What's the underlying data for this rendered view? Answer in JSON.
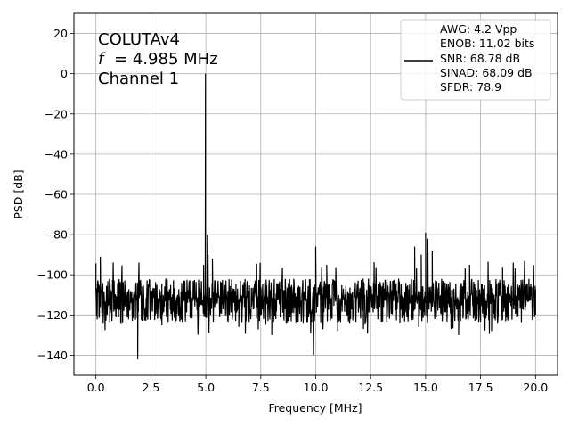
{
  "chart_data": {
    "type": "line",
    "title": "",
    "xlabel": "Frequency [MHz]",
    "ylabel": "PSD [dB]",
    "xlim": [
      -1,
      21
    ],
    "ylim": [
      -150,
      30
    ],
    "xticks": [
      0.0,
      2.5,
      5.0,
      7.5,
      10.0,
      12.5,
      15.0,
      17.5,
      20.0
    ],
    "xtick_labels": [
      "0.0",
      "2.5",
      "5.0",
      "7.5",
      "10.0",
      "12.5",
      "15.0",
      "17.5",
      "20.0"
    ],
    "yticks": [
      -140,
      -120,
      -100,
      -80,
      -60,
      -40,
      -20,
      0,
      20
    ],
    "ytick_labels": [
      "−140",
      "−120",
      "−100",
      "−80",
      "−60",
      "−40",
      "−20",
      "0",
      "20"
    ],
    "grid": true,
    "line_color": "#000000",
    "annotation_lines": [
      "COLUTAv4",
      "= 4.985 MHz",
      "Channel 1"
    ],
    "annotation_symbol": "f",
    "legend_position": "top-right",
    "legend_lines": [
      "AWG: 4.2 Vpp",
      "ENOB: 11.02 bits",
      "SNR: 68.78 dB",
      "SINAD: 68.09 dB",
      "SFDR: 78.9"
    ],
    "noise_floor": {
      "baseline": -110,
      "band_top": -97,
      "band_bottom": -124
    },
    "series": [
      {
        "x": [
          0.0,
          0.2,
          0.5,
          1.0,
          1.5,
          1.9,
          2.5,
          3.0,
          4.0,
          4.9,
          4.985,
          5.07,
          5.1,
          5.3,
          6.0,
          6.5,
          7.5,
          8.0,
          9.0,
          9.9,
          10.0,
          10.5,
          11.0,
          12.0,
          12.5,
          13.5,
          14.5,
          14.8,
          15.0,
          15.1,
          15.3,
          16.0,
          16.5,
          17.0,
          17.5,
          18.0,
          18.5,
          19.0,
          19.5,
          20.0
        ],
        "y": [
          -107,
          -91,
          -112,
          -104,
          -115,
          -142,
          -108,
          -125,
          -113,
          -95,
          0,
          -80,
          -90,
          -92,
          -108,
          -126,
          -106,
          -130,
          -102,
          -140,
          -86,
          -95,
          -128,
          -107,
          -112,
          -103,
          -86,
          -90,
          -79,
          -82,
          -88,
          -108,
          -130,
          -95,
          -110,
          -128,
          -96,
          -115,
          -95,
          -107
        ]
      }
    ]
  }
}
